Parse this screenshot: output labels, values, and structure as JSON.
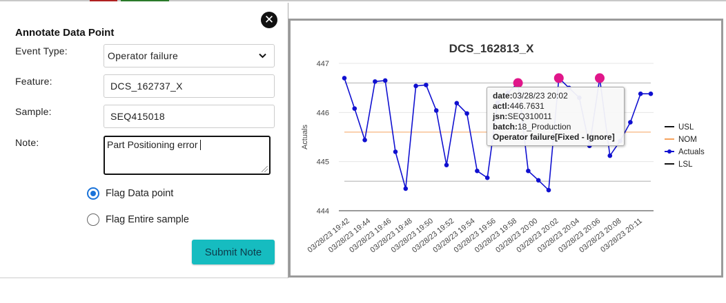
{
  "modal": {
    "title": "Annotate Data Point",
    "close_symbol": "✕",
    "event_type": {
      "label": "Event Type:",
      "value": "Operator failure"
    },
    "feature": {
      "label": "Feature:",
      "value": "DCS_162737_X"
    },
    "sample": {
      "label": "Sample:",
      "value": "SEQ415018"
    },
    "note": {
      "label": "Note:",
      "value": "Part Positioning error"
    },
    "radios": [
      {
        "label": "Flag Data point",
        "checked": true
      },
      {
        "label": "Flag Entire sample",
        "checked": false
      }
    ],
    "submit_label": "Submit Note"
  },
  "colors": {
    "accent": "#16bcc0",
    "series": "#1010d0",
    "flag": "#e0168a",
    "nom": "#f5a25d",
    "radio": "#1a73d9"
  },
  "icons": {
    "close": "close-icon",
    "dropdown": "chevron-down-icon"
  },
  "tooltip": {
    "date_label": "date:",
    "date_value": "03/28/23 20:02",
    "actl_label": "actl:",
    "actl_value": "446.7631",
    "jsn_label": "jsn:",
    "jsn_value": "SEQ310011",
    "batch_label": "batch:",
    "batch_value": "18_Production",
    "status": "Operator failure[Fixed - Ignore]"
  },
  "chart_data": {
    "type": "line",
    "title": "DCS_162813_X",
    "ylabel": "Actuals",
    "ylim": [
      444,
      447
    ],
    "yticks": [
      444,
      445,
      446,
      447
    ],
    "x_tick_labels": [
      "03/28/23 19:42",
      "03/28/23 19:44",
      "03/28/23 19:46",
      "03/28/23 19:48",
      "03/28/23 19:50",
      "03/28/23 19:52",
      "03/28/23 19:54",
      "03/28/23 19:56",
      "03/28/23 19:58",
      "03/28/23 20:00",
      "03/28/23 20:02",
      "03/28/23 20:04",
      "03/28/23 20:06",
      "03/28/23 20:08",
      "03/28/23 20:11"
    ],
    "limits": {
      "USL": 446.6,
      "NOM": 445.6,
      "LSL": 444.6
    },
    "legend": [
      "USL",
      "NOM",
      "Actuals",
      "LSL"
    ],
    "legend_position": "right",
    "series": [
      {
        "name": "Actuals",
        "values": [
          446.7,
          446.08,
          445.44,
          446.63,
          446.65,
          445.2,
          444.45,
          446.54,
          446.56,
          446.04,
          444.93,
          446.19,
          445.98,
          444.81,
          444.67,
          446.2,
          446.4,
          446.6,
          444.81,
          444.62,
          444.42,
          446.7,
          446.5,
          446.3,
          445.32,
          446.7,
          445.12,
          445.42,
          445.8,
          446.38,
          446.38
        ]
      }
    ],
    "flagged_indices": [
      17,
      21,
      25
    ]
  }
}
